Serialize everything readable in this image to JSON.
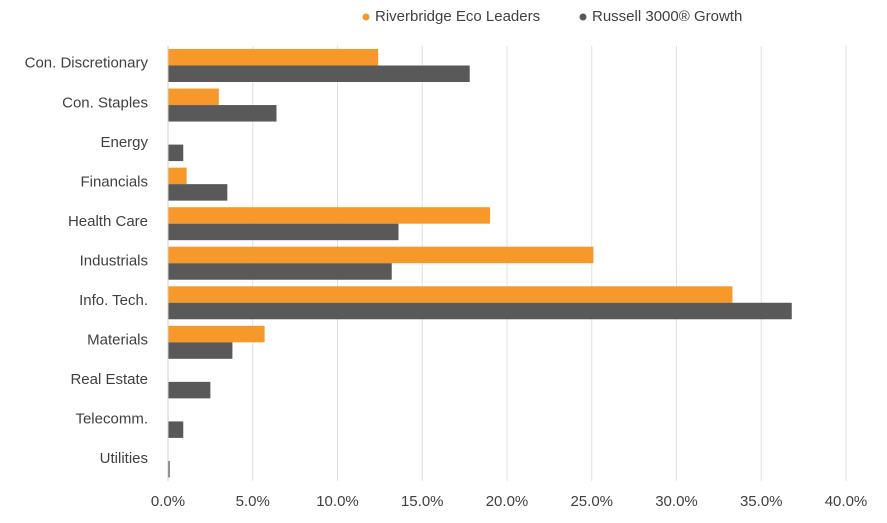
{
  "chart_data": {
    "type": "hbar",
    "categories": [
      "Con. Discretionary",
      "Con. Staples",
      "Energy",
      "Financials",
      "Health Care",
      "Industrials",
      "Info. Tech.",
      "Materials",
      "Real Estate",
      "Telecomm.",
      "Utilities"
    ],
    "series": [
      {
        "name": "Riverbridge Eco Leaders",
        "color": "#f7992a",
        "values": [
          12.4,
          3.0,
          0,
          1.1,
          19.0,
          25.1,
          33.3,
          5.7,
          0,
          0,
          0
        ]
      },
      {
        "name": "Russell 3000® Growth",
        "color": "#595959",
        "values": [
          17.8,
          6.4,
          0.9,
          3.5,
          13.6,
          13.2,
          36.8,
          3.8,
          2.5,
          0.9,
          0.1
        ]
      }
    ],
    "xlim": [
      0,
      40
    ],
    "xticks": [
      {
        "value": 0,
        "label": "0.0%"
      },
      {
        "value": 5,
        "label": "5.0%"
      },
      {
        "value": 10,
        "label": "10.0%"
      },
      {
        "value": 15,
        "label": "15.0%"
      },
      {
        "value": 20,
        "label": "20.0%"
      },
      {
        "value": 25,
        "label": "25.0%"
      },
      {
        "value": 30,
        "label": "30.0%"
      },
      {
        "value": 35,
        "label": "35.0%"
      },
      {
        "value": 40,
        "label": "40.0%"
      }
    ],
    "grid": true,
    "legend": "top"
  }
}
